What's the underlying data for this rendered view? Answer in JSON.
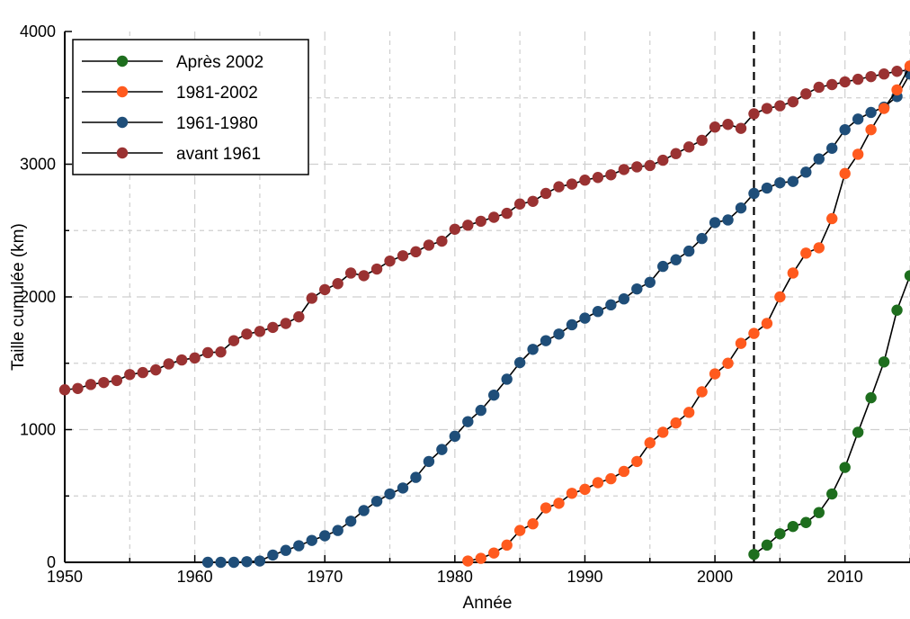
{
  "chart_data": {
    "type": "line",
    "xlabel": "Année",
    "ylabel": "Taille cumulée (km)",
    "xlim": [
      1950,
      2015
    ],
    "ylim": [
      0,
      4000
    ],
    "x_ticks": [
      1950,
      1960,
      1970,
      1980,
      1990,
      2000,
      2010
    ],
    "y_ticks": [
      0,
      1000,
      2000,
      3000,
      4000
    ],
    "x_tick_labels": [
      "1950",
      "1960",
      "1970",
      "1980",
      "1990",
      "2000",
      "2010"
    ],
    "y_tick_labels": [
      "0",
      "1000",
      "2000",
      "3000",
      "4000"
    ],
    "grid": true,
    "legend_position": "top-left",
    "vertical_marker_x": 2003,
    "series": [
      {
        "name": "Après 2002",
        "color": "#1e6e1e",
        "x": [
          2003,
          2004,
          2005,
          2006,
          2007,
          2008,
          2009,
          2010,
          2011,
          2012,
          2013,
          2014,
          2015
        ],
        "y": [
          60,
          130,
          215,
          270,
          300,
          375,
          515,
          715,
          980,
          1240,
          1510,
          1900,
          2160
        ]
      },
      {
        "name": "1981-2002",
        "color": "#ff5a1e",
        "x": [
          1981,
          1982,
          1983,
          1984,
          1985,
          1986,
          1987,
          1988,
          1989,
          1990,
          1991,
          1992,
          1993,
          1994,
          1995,
          1996,
          1997,
          1998,
          1999,
          2000,
          2001,
          2002,
          2003,
          2004,
          2005,
          2006,
          2007,
          2008,
          2009,
          2010,
          2011,
          2012,
          2013,
          2014,
          2015
        ],
        "y": [
          10,
          30,
          70,
          130,
          240,
          290,
          410,
          445,
          520,
          550,
          600,
          630,
          685,
          760,
          900,
          980,
          1050,
          1130,
          1285,
          1420,
          1500,
          1650,
          1725,
          1800,
          2000,
          2180,
          2330,
          2370,
          2590,
          2930,
          3075,
          3260,
          3420,
          3560,
          3740
        ]
      },
      {
        "name": "1961-1980",
        "color": "#1f4e79",
        "x": [
          1961,
          1962,
          1963,
          1964,
          1965,
          1966,
          1967,
          1968,
          1969,
          1970,
          1971,
          1972,
          1973,
          1974,
          1975,
          1976,
          1977,
          1978,
          1979,
          1980,
          1981,
          1982,
          1983,
          1984,
          1985,
          1986,
          1987,
          1988,
          1989,
          1990,
          1991,
          1992,
          1993,
          1994,
          1995,
          1996,
          1997,
          1998,
          1999,
          2000,
          2001,
          2002,
          2003,
          2004,
          2005,
          2006,
          2007,
          2008,
          2009,
          2010,
          2011,
          2012,
          2013,
          2014,
          2015
        ],
        "y": [
          0,
          0,
          0,
          5,
          10,
          55,
          90,
          125,
          165,
          200,
          240,
          310,
          390,
          460,
          515,
          560,
          640,
          760,
          850,
          950,
          1060,
          1145,
          1260,
          1380,
          1505,
          1605,
          1670,
          1720,
          1790,
          1840,
          1890,
          1940,
          1985,
          2060,
          2110,
          2230,
          2280,
          2345,
          2440,
          2560,
          2580,
          2670,
          2780,
          2820,
          2860,
          2870,
          2940,
          3040,
          3120,
          3260,
          3340,
          3390,
          3430,
          3510,
          3680
        ]
      },
      {
        "name": "avant 1961",
        "color": "#9a3232",
        "x": [
          1950,
          1951,
          1952,
          1953,
          1954,
          1955,
          1956,
          1957,
          1958,
          1959,
          1960,
          1961,
          1962,
          1963,
          1964,
          1965,
          1966,
          1967,
          1968,
          1969,
          1970,
          1971,
          1972,
          1973,
          1974,
          1975,
          1976,
          1977,
          1978,
          1979,
          1980,
          1981,
          1982,
          1983,
          1984,
          1985,
          1986,
          1987,
          1988,
          1989,
          1990,
          1991,
          1992,
          1993,
          1994,
          1995,
          1996,
          1997,
          1998,
          1999,
          2000,
          2001,
          2002,
          2003,
          2004,
          2005,
          2006,
          2007,
          2008,
          2009,
          2010,
          2011,
          2012,
          2013,
          2014,
          2015
        ],
        "y": [
          1300,
          1310,
          1340,
          1355,
          1370,
          1415,
          1430,
          1450,
          1495,
          1525,
          1540,
          1580,
          1585,
          1670,
          1720,
          1740,
          1770,
          1800,
          1850,
          1990,
          2055,
          2100,
          2180,
          2160,
          2210,
          2270,
          2310,
          2340,
          2390,
          2420,
          2510,
          2540,
          2570,
          2600,
          2630,
          2700,
          2720,
          2780,
          2830,
          2850,
          2880,
          2900,
          2920,
          2960,
          2980,
          2990,
          3030,
          3080,
          3130,
          3180,
          3280,
          3300,
          3270,
          3380,
          3420,
          3440,
          3470,
          3530,
          3580,
          3600,
          3620,
          3640,
          3660,
          3680,
          3700,
          3710
        ]
      }
    ]
  }
}
